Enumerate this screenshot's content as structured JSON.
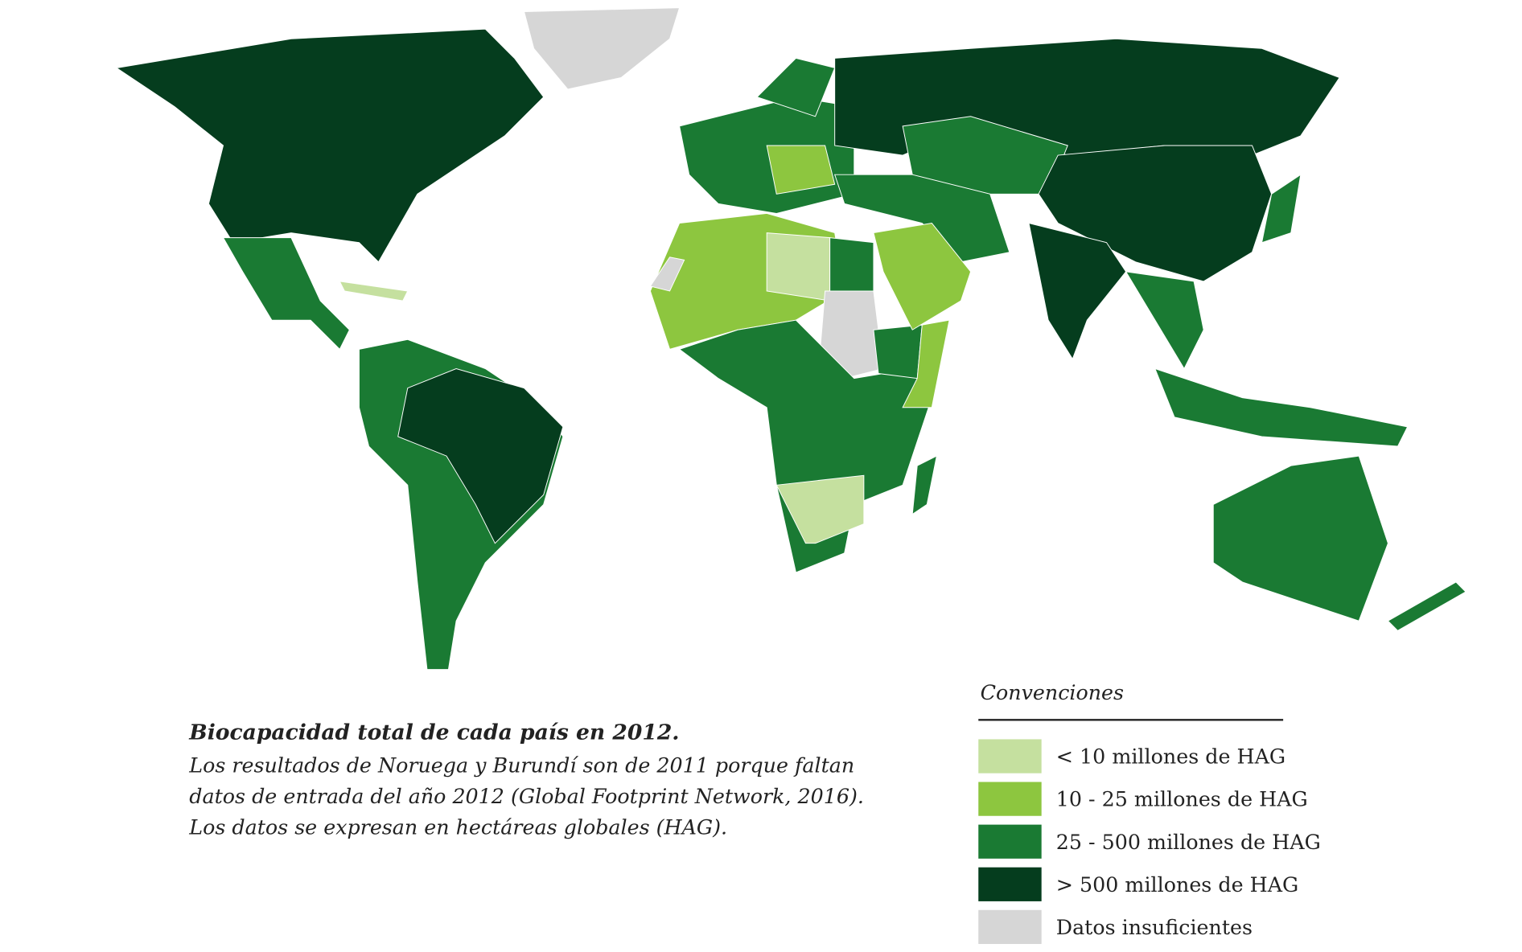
{
  "caption": {
    "title": "Biocapacidad total de cada país en 2012.",
    "lines": [
      "Los resultados de Noruega y Burundí son de 2011 porque faltan",
      "datos de entrada del año 2012 (Global Footprint Network, 2016).",
      "Los datos se expresan en hectáreas globales (HAG)."
    ]
  },
  "legend": {
    "title": "Convenciones",
    "items": [
      {
        "label": "< 10 millones de HAG",
        "color": "#c5e09f"
      },
      {
        "label": "10 - 25 millones de HAG",
        "color": "#8dc63f"
      },
      {
        "label": "25 - 500 millones de HAG",
        "color": "#1a7a33"
      },
      {
        "label": "> 500 millones de HAG",
        "color": "#053d1e"
      },
      {
        "label": "Datos insuficientes",
        "color": "#d6d6d6"
      }
    ]
  }
}
